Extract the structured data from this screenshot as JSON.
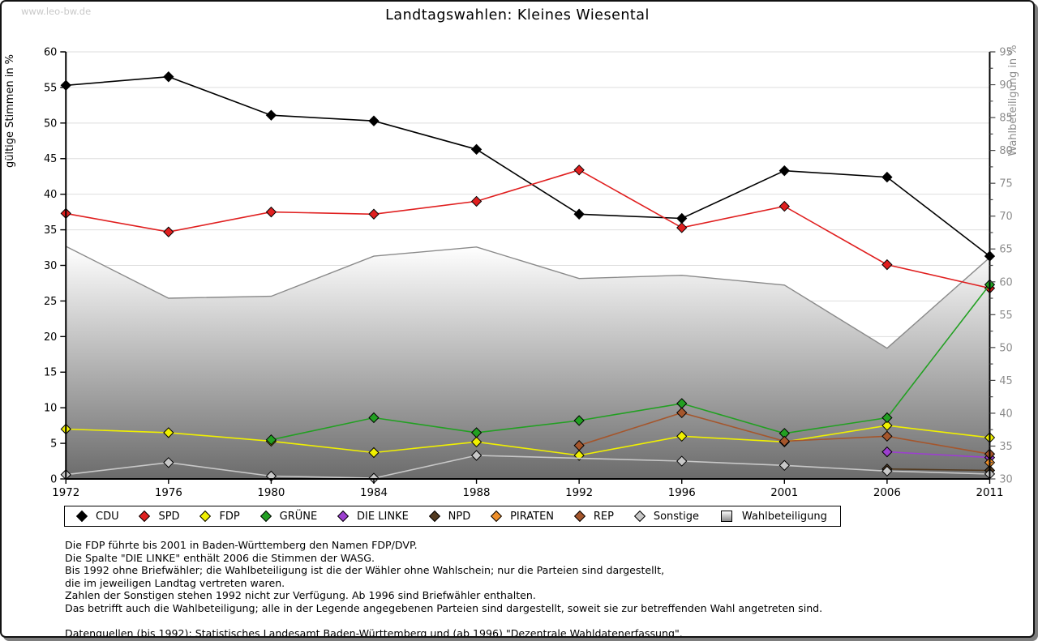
{
  "window": {
    "watermark": "www.leo-bw.de"
  },
  "chart_data": {
    "type": "line",
    "title": "Landtagswahlen: Kleines Wiesental",
    "x_categories": [
      "1972",
      "1976",
      "1980",
      "1984",
      "1988",
      "1992",
      "1996",
      "2001",
      "2006",
      "2011"
    ],
    "left_axis": {
      "label": "gültige Stimmen in %",
      "min": 0,
      "max": 60,
      "tick_step": 5,
      "color": "#000000"
    },
    "right_axis": {
      "label": "Wahlbeteiligung in %",
      "min": 30,
      "max": 95,
      "tick_step": 5,
      "minor_step": 2.5,
      "color": "#8c8c8c"
    },
    "grid": true,
    "grid_color": "#dedede",
    "legend_position": "bottom",
    "series": [
      {
        "name": "CDU",
        "color": "#000000",
        "axis": "left",
        "values": [
          55.3,
          56.5,
          51.1,
          50.3,
          46.3,
          37.2,
          36.6,
          43.3,
          42.4,
          31.3
        ]
      },
      {
        "name": "SPD",
        "color": "#e01f1f",
        "axis": "left",
        "values": [
          37.3,
          34.7,
          37.5,
          37.2,
          39.0,
          43.4,
          35.3,
          38.3,
          30.1,
          26.8
        ]
      },
      {
        "name": "FDP",
        "color": "#f0f000",
        "axis": "left",
        "values": [
          7.0,
          6.5,
          5.3,
          3.7,
          5.2,
          3.3,
          6.0,
          5.2,
          7.5,
          5.8
        ]
      },
      {
        "name": "GRÜNE",
        "color": "#22a022",
        "axis": "left",
        "values": [
          null,
          null,
          5.5,
          8.6,
          6.5,
          8.2,
          10.6,
          6.4,
          8.6,
          27.3
        ]
      },
      {
        "name": "DIE LINKE",
        "color": "#9c3fd0",
        "axis": "left",
        "values": [
          null,
          null,
          null,
          null,
          null,
          null,
          null,
          null,
          3.8,
          3.0
        ]
      },
      {
        "name": "NPD",
        "color": "#523a20",
        "axis": "left",
        "values": [
          null,
          null,
          null,
          null,
          null,
          null,
          null,
          null,
          1.4,
          1.2
        ]
      },
      {
        "name": "PIRATEN",
        "color": "#ee8f2a",
        "axis": "left",
        "values": [
          null,
          null,
          null,
          null,
          null,
          null,
          null,
          null,
          null,
          2.3
        ]
      },
      {
        "name": "REP",
        "color": "#a5562c",
        "axis": "left",
        "values": [
          null,
          null,
          null,
          null,
          null,
          4.7,
          9.3,
          5.3,
          6.0,
          3.5
        ]
      },
      {
        "name": "Sonstige",
        "color": "#c8c8c8",
        "axis": "left",
        "values": [
          0.6,
          2.3,
          0.4,
          0.1,
          3.3,
          null,
          2.5,
          1.9,
          1.1,
          0.7
        ]
      }
    ],
    "area_series": {
      "name": "Wahlbeteiligung",
      "axis": "right",
      "color_top": "#ffffff",
      "color_bottom": "#6b6b6b",
      "edge_color": "#8a8a8a",
      "values": [
        65.4,
        57.5,
        57.8,
        63.9,
        65.3,
        60.5,
        61.0,
        59.5,
        49.9,
        63.7
      ]
    }
  },
  "footnotes": {
    "lines": [
      "Die FDP führte bis 2001 in Baden-Württemberg den Namen FDP/DVP.",
      "Die Spalte \"DIE LINKE\" enthält 2006 die Stimmen der WASG.",
      "Bis 1992 ohne Briefwähler; die Wahlbeteiligung ist die der Wähler ohne Wahlschein; nur die Parteien sind dargestellt,",
      "die im jeweiligen Landtag vertreten waren.",
      "Zahlen der Sonstigen stehen 1992 nicht zur Verfügung. Ab 1996 sind Briefwähler enthalten.",
      "Das betrifft auch die Wahlbeteiligung; alle in der Legende angegebenen Parteien sind dargestellt, soweit sie zur betreffenden Wahl angetreten sind.",
      "",
      "Datenquellen (bis 1992): Statistisches Landesamt Baden-Württemberg und (ab 1996) \"Dezentrale Wahldatenerfassung\"."
    ]
  }
}
